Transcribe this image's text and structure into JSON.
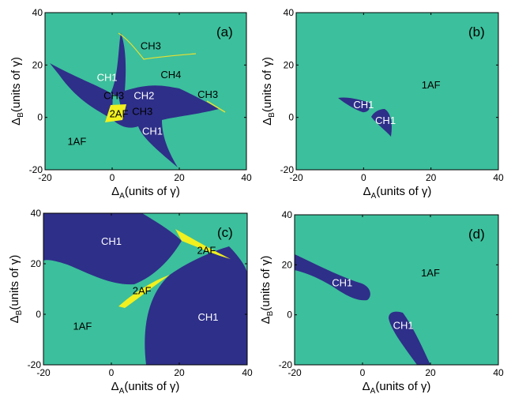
{
  "figure": {
    "colors": {
      "background": "#3cbf9c",
      "ch1": "#2e2f89",
      "af2": "#f2f01e",
      "ch_line": "#e8e030",
      "frame": "#000000"
    },
    "ylabel": {
      "main": "Δ",
      "sub": "B",
      "rest": "(units of γ)"
    },
    "xlabel": {
      "main": "Δ",
      "sub": "A",
      "rest": "(units of γ)"
    }
  },
  "chart_data": [
    {
      "type": "heatmap",
      "panel_label": "(a)",
      "xlim": [
        -20,
        40
      ],
      "ylim": [
        -20,
        40
      ],
      "x_ticks": [
        "-20",
        "0",
        "20",
        "40"
      ],
      "y_ticks": [
        "-20",
        "0",
        "20",
        "40"
      ],
      "show_xlabel": true,
      "regions": [
        {
          "label": "CH1",
          "x": -1.5,
          "y": 15.5,
          "color": "white"
        },
        {
          "label": "CH3",
          "x": 11.5,
          "y": 27.5,
          "color": "black"
        },
        {
          "label": "CH4",
          "x": 17.5,
          "y": 16.5,
          "color": "black"
        },
        {
          "label": "CH3",
          "x": 0.5,
          "y": 8.5,
          "color": "black"
        },
        {
          "label": "CH2",
          "x": 9.5,
          "y": 8.5,
          "color": "white"
        },
        {
          "label": "CH3",
          "x": 28.5,
          "y": 9,
          "color": "black"
        },
        {
          "label": "2AF",
          "x": 2,
          "y": 1.5,
          "color": "black"
        },
        {
          "label": "CH3",
          "x": 9,
          "y": 2.5,
          "color": "black"
        },
        {
          "label": "CH1",
          "x": 12,
          "y": -5,
          "color": "white"
        },
        {
          "label": "1AF",
          "x": -10.5,
          "y": -9,
          "color": "black"
        }
      ]
    },
    {
      "type": "heatmap",
      "panel_label": "(b)",
      "xlim": [
        -20,
        40
      ],
      "ylim": [
        -20,
        40
      ],
      "x_ticks": [
        "-20",
        "0",
        "20",
        "40"
      ],
      "y_ticks": [
        "-20",
        "0",
        "20",
        "40"
      ],
      "show_xlabel": true,
      "regions": [
        {
          "label": "CH1",
          "x": 0,
          "y": 5,
          "color": "white"
        },
        {
          "label": "CH1",
          "x": 6.5,
          "y": -1,
          "color": "white"
        },
        {
          "label": "1AF",
          "x": 20,
          "y": 12.5,
          "color": "black"
        }
      ]
    },
    {
      "type": "heatmap",
      "panel_label": "(c)",
      "xlim": [
        -20,
        40
      ],
      "ylim": [
        -20,
        40
      ],
      "x_ticks": [
        "-20",
        "0",
        "20",
        "40"
      ],
      "y_ticks": [
        "-20",
        "0",
        "20",
        "40"
      ],
      "show_xlabel": true,
      "regions": [
        {
          "label": "CH1",
          "x": 0,
          "y": 29,
          "color": "white"
        },
        {
          "label": "2AF",
          "x": 28,
          "y": 25.5,
          "color": "black"
        },
        {
          "label": "2AF",
          "x": 9,
          "y": 9.5,
          "color": "black"
        },
        {
          "label": "1AF",
          "x": -8.5,
          "y": -4.5,
          "color": "black"
        },
        {
          "label": "CH1",
          "x": 28.5,
          "y": -1,
          "color": "white"
        }
      ]
    },
    {
      "type": "heatmap",
      "panel_label": "(d)",
      "xlim": [
        -20,
        40
      ],
      "ylim": [
        -20,
        40
      ],
      "x_ticks": [
        "-20",
        "0",
        "20",
        "40"
      ],
      "y_ticks": [
        "-20",
        "0",
        "20",
        "40"
      ],
      "show_xlabel": true,
      "regions": [
        {
          "label": "CH1",
          "x": -6,
          "y": 13,
          "color": "white"
        },
        {
          "label": "1AF",
          "x": 20,
          "y": 17,
          "color": "black"
        },
        {
          "label": "CH1",
          "x": 12,
          "y": -4,
          "color": "white"
        }
      ]
    }
  ]
}
